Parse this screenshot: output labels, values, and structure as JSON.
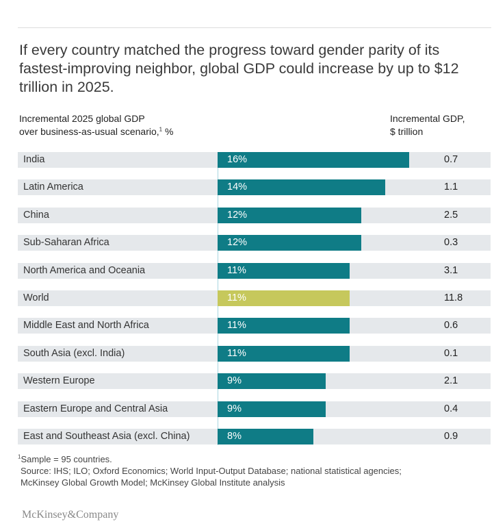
{
  "title": "If every country matched the progress toward gender parity of its fastest-improving neighbor, global GDP could increase by up to $12 trillion in 2025.",
  "header_left_line1": "Incremental 2025 global GDP",
  "header_left_line2": "over business-as-usual scenario,",
  "header_left_sup": "1",
  "header_left_unit": " %",
  "header_right_line1": "Incremental GDP,",
  "header_right_line2": "$ trillion",
  "colors": {
    "bar": "#0f7c86",
    "highlight": "#c6c85c",
    "band": "#e5e8eb"
  },
  "chart_data": {
    "type": "bar",
    "orientation": "horizontal",
    "categories": [
      "India",
      "Latin America",
      "China",
      "Sub-Saharan Africa",
      "North America and Oceania",
      "World",
      "Middle East and North Africa",
      "South Asia (excl. India)",
      "Western Europe",
      "Eastern Europe and Central Asia",
      "East and Southeast Asia (excl. China)"
    ],
    "values": [
      16,
      14,
      12,
      12,
      11,
      11,
      11,
      11,
      9,
      9,
      8
    ],
    "value_labels": [
      "16%",
      "14%",
      "12%",
      "12%",
      "11%",
      "11%",
      "11%",
      "11%",
      "9%",
      "9%",
      "8%"
    ],
    "secondary_values": [
      "0.7",
      "1.1",
      "2.5",
      "0.3",
      "3.1",
      "11.8",
      "0.6",
      "0.1",
      "2.1",
      "0.4",
      "0.9"
    ],
    "highlight": "World"
  },
  "footnote": "Sample = 95 countries.",
  "footnote_marker": "1",
  "source_line1": "Source: IHS; ILO; Oxford Economics; World Input-Output Database; national statistical agencies;",
  "source_line2": "McKinsey Global Growth Model; McKinsey Global Institute analysis",
  "logo": "McKinsey&Company"
}
